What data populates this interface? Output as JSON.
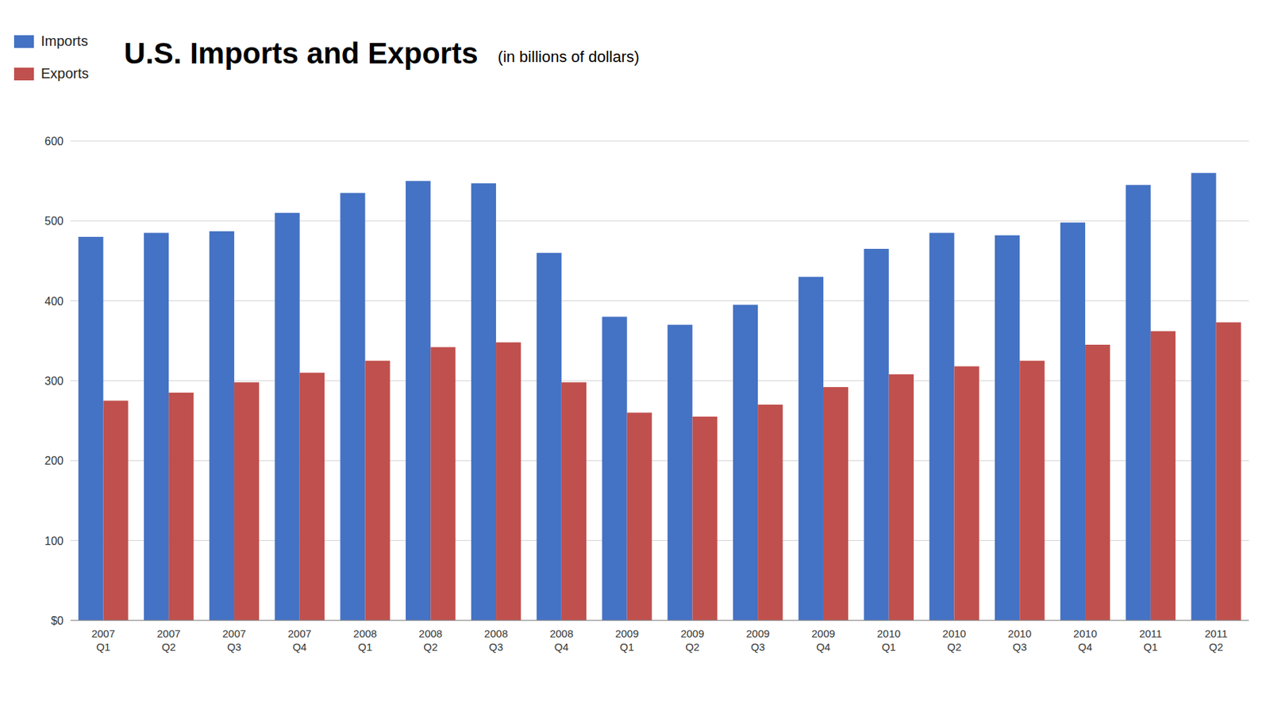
{
  "chart_data": {
    "type": "bar",
    "title": "U.S. Imports and Exports",
    "subtitle": "(in billions of dollars)",
    "categories": [
      "2007\nQ1",
      "2007\nQ2",
      "2007\nQ3",
      "2007\nQ4",
      "2008\nQ1",
      "2008\nQ2",
      "2008\nQ3",
      "2008\nQ4",
      "2009\nQ1",
      "2009\nQ2",
      "2009\nQ3",
      "2009\nQ4",
      "2010\nQ1",
      "2010\nQ2",
      "2010\nQ3",
      "2010\nQ4",
      "2011\nQ1",
      "2011\nQ2"
    ],
    "series": [
      {
        "name": "Imports",
        "color": "#4472C4",
        "values": [
          480,
          485,
          487,
          510,
          535,
          550,
          547,
          460,
          380,
          370,
          395,
          430,
          465,
          485,
          482,
          498,
          545,
          560
        ]
      },
      {
        "name": "Exports",
        "color": "#C0504D",
        "values": [
          275,
          285,
          298,
          310,
          325,
          342,
          348,
          298,
          260,
          255,
          270,
          292,
          308,
          318,
          325,
          345,
          362,
          373
        ]
      }
    ],
    "ylim": [
      0,
      600
    ],
    "yticks": [
      {
        "value": 0,
        "label": "$0"
      },
      100,
      200,
      300,
      400,
      500,
      600
    ],
    "grid": true,
    "legend": "upper left"
  }
}
